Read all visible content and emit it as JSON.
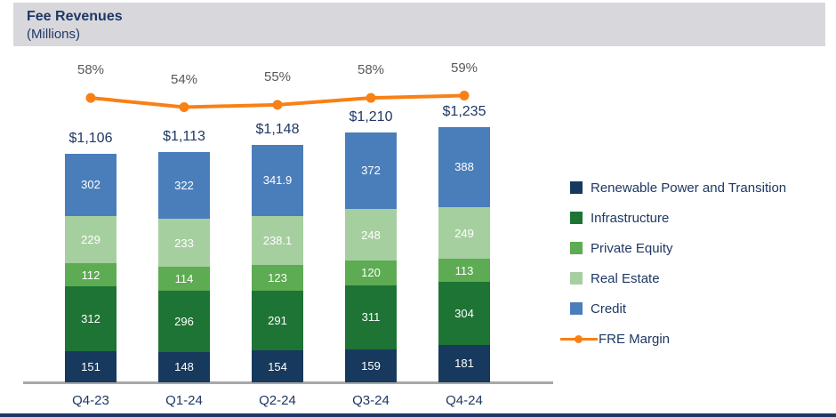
{
  "header": {
    "title": "Fee Revenues",
    "subtitle": "(Millions)"
  },
  "colors": {
    "renewable_navy": "#17395d",
    "infrastructure_green": "#1e7434",
    "private_equity_green": "#5dab52",
    "real_estate_green": "#a6cf9f",
    "credit_blue": "#4a7ebb",
    "fre_orange": "#f98015",
    "header_bg": "#d8d8dc",
    "text_navy": "#1f3864",
    "pct_gray": "#595959",
    "axis_gray": "#a8a8a8",
    "segment_label_white": "#ffffff"
  },
  "chart_data": {
    "type": "bar",
    "stacked": true,
    "title": "Fee Revenues",
    "units": "Millions",
    "legend_position": "right",
    "categories": [
      "Q4-23",
      "Q1-24",
      "Q2-24",
      "Q3-24",
      "Q4-24"
    ],
    "series": [
      {
        "name": "Renewable Power and Transition",
        "color_key": "renewable_navy",
        "values": [
          151,
          148,
          154,
          159,
          181
        ],
        "labels": [
          "151",
          "148",
          "154",
          "159",
          "181"
        ]
      },
      {
        "name": "Infrastructure",
        "color_key": "infrastructure_green",
        "values": [
          312,
          296,
          291,
          311,
          304
        ],
        "labels": [
          "312",
          "296",
          "291",
          "311",
          "304"
        ]
      },
      {
        "name": "Private Equity",
        "color_key": "private_equity_green",
        "values": [
          112,
          114,
          123,
          120,
          113
        ],
        "labels": [
          "112",
          "114",
          "123",
          "120",
          "113"
        ]
      },
      {
        "name": "Real Estate",
        "color_key": "real_estate_green",
        "values": [
          229,
          233,
          238.1,
          248,
          249
        ],
        "labels": [
          "229",
          "233",
          "238.1",
          "248",
          "249"
        ]
      },
      {
        "name": "Credit",
        "color_key": "credit_blue",
        "values": [
          302,
          322,
          341.9,
          372,
          388
        ],
        "labels": [
          "302",
          "322",
          "341.9",
          "372",
          "388"
        ]
      }
    ],
    "totals": [
      "$1,106",
      "$1,113",
      "$1,148",
      "$1,210",
      "$1,235"
    ],
    "line_series": {
      "name": "FRE Margin",
      "color_key": "fre_orange",
      "values": [
        58,
        54,
        55,
        58,
        59
      ],
      "labels": [
        "58%",
        "54%",
        "55%",
        "58%",
        "59%"
      ]
    }
  },
  "legend": {
    "items": [
      {
        "label": "Renewable Power and Transition",
        "color_key": "renewable_navy",
        "type": "square"
      },
      {
        "label": "Infrastructure",
        "color_key": "infrastructure_green",
        "type": "square"
      },
      {
        "label": "Private Equity",
        "color_key": "private_equity_green",
        "type": "square"
      },
      {
        "label": "Real Estate",
        "color_key": "real_estate_green",
        "type": "square"
      },
      {
        "label": "Credit",
        "color_key": "credit_blue",
        "type": "square"
      },
      {
        "label": "FRE Margin",
        "color_key": "fre_orange",
        "type": "line"
      }
    ]
  }
}
